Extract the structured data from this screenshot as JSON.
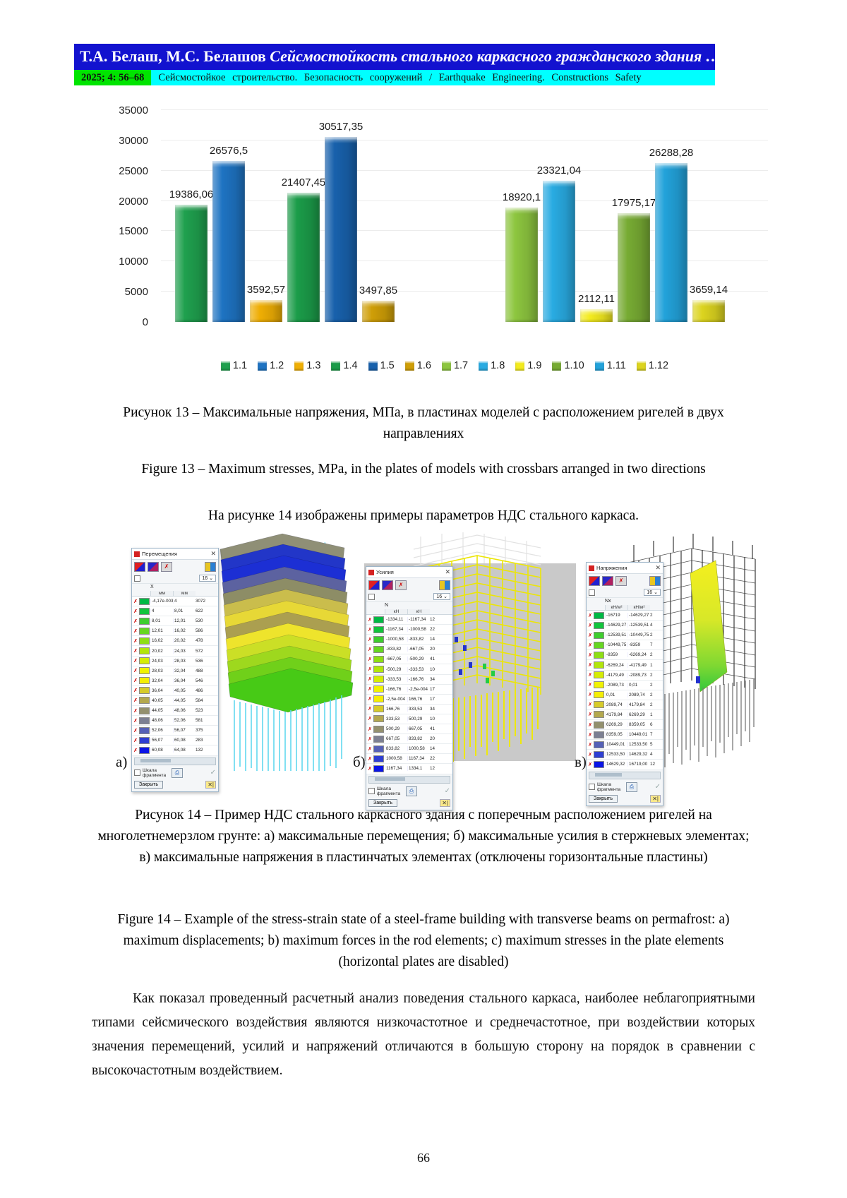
{
  "header": {
    "authors": "Т.А. Белаш, М.С. Белашов",
    "title_italic": "Сейсмостойкость стального каркасного гражданского здания …",
    "issue": "2025;   4:   56–68",
    "journal": "Сейсмостойкое строительство. Безопасность сооружений / Earthquake Engineering. Constructions Safety"
  },
  "chart_data": {
    "type": "bar",
    "title": "Максимальные напряжения, МПа, в пластинах моделей",
    "xlabel": "",
    "ylabel": "",
    "ylim": [
      0,
      35000
    ],
    "yticks": [
      0,
      5000,
      10000,
      15000,
      20000,
      25000,
      30000,
      35000
    ],
    "grid": true,
    "legend_position": "bottom",
    "series": [
      {
        "name": "1.1",
        "value": 19386.06,
        "label": "19386,06",
        "color": "#1fa04e"
      },
      {
        "name": "1.2",
        "value": 26576.5,
        "label": "26576,5",
        "color": "#1e73c2"
      },
      {
        "name": "1.3",
        "value": 3592.57,
        "label": "3592,57",
        "color": "#efae04"
      },
      {
        "name": "1.4",
        "value": 21407.45,
        "label": "21407,45",
        "color": "#1b9c49"
      },
      {
        "name": "1.5",
        "value": 30517.35,
        "label": "30517,35",
        "color": "#1861ac"
      },
      {
        "name": "1.6",
        "value": 3497.85,
        "label": "3497,85",
        "color": "#cf9e07"
      },
      {
        "name": "1.7",
        "value": 18920.1,
        "label": "18920,1",
        "color": "#8dc63f"
      },
      {
        "name": "1.8",
        "value": 23321.04,
        "label": "23321,04",
        "color": "#29abe2"
      },
      {
        "name": "1.9",
        "value": 2112.11,
        "label": "2112,11",
        "color": "#f3eb1e"
      },
      {
        "name": "1.10",
        "value": 17975.17,
        "label": "17975,17",
        "color": "#77ab33"
      },
      {
        "name": "1.11",
        "value": 26288.28,
        "label": "26288,28",
        "color": "#22a2da"
      },
      {
        "name": "1.12",
        "value": 3659.14,
        "label": "3659,14",
        "color": "#dcd41f"
      }
    ]
  },
  "captions": {
    "fig13_ru": "Рисунок 13 – Максимальные напряжения, МПа, в пластинах моделей с расположением ригелей в двух направлениях",
    "fig13_en": "Figure 13 – Maximum stresses, MPa, in the plates of models with crossbars arranged in two directions",
    "intro14": "На рисунке 14 изображены примеры параметров НДС стального каркаса.",
    "fig14_ru": "Рисунок 14 – Пример НДС стального каркасного здания с поперечным расположением ригелей на многолетнемерзлом грунте: а) максимальные перемещения; б) максимальные усилия в стержневых элементах; в) максимальные напряжения в пластинчатых элементах (отключены горизонтальные пластины)",
    "fig14_en": "Figure 14 – Example of the stress-strain state of a steel-frame building with transverse beams on permafrost: a) maximum displacements; b) maximum forces in the rod elements; c) maximum stresses in the plate elements (horizontal plates are disabled)"
  },
  "figures": {
    "a": {
      "label": "а)",
      "dialog_title": "Перемещения",
      "group_header": "X",
      "col1": "мм",
      "col2": "мм",
      "dropdown": "16",
      "fragment_scale": "Шкала фрагмента",
      "close": "Закрыть",
      "rows": [
        [
          "-4,17e-003",
          "4",
          "3072",
          "#00b944"
        ],
        [
          "4",
          "8,01",
          "622",
          "#12c43c"
        ],
        [
          "8,01",
          "12,01",
          "530",
          "#3ecd2e"
        ],
        [
          "12,01",
          "16,02",
          "586",
          "#66d621"
        ],
        [
          "16,02",
          "20,02",
          "478",
          "#8ede14"
        ],
        [
          "20,02",
          "24,03",
          "572",
          "#b2e50c"
        ],
        [
          "24,03",
          "28,03",
          "536",
          "#d5ec06"
        ],
        [
          "28,03",
          "32,04",
          "488",
          "#f0f202"
        ],
        [
          "32,04",
          "36,04",
          "546",
          "#f4ee04"
        ],
        [
          "36,04",
          "40,05",
          "486",
          "#d6cb2a"
        ],
        [
          "40,05",
          "44,05",
          "584",
          "#b3a84e"
        ],
        [
          "44,05",
          "48,06",
          "523",
          "#93906e"
        ],
        [
          "48,06",
          "52,06",
          "581",
          "#7c7f92"
        ],
        [
          "52,06",
          "56,07",
          "375",
          "#5560b6"
        ],
        [
          "56,07",
          "60,08",
          "283",
          "#2e3ed2"
        ],
        [
          "60,08",
          "64,08",
          "132",
          "#0a14e6"
        ]
      ]
    },
    "b": {
      "label": "б)",
      "dialog_title": "Усилия",
      "group_header": "N",
      "col1": "кН",
      "col2": "кН",
      "dropdown": "16",
      "fragment_scale": "Шкала фрагмента",
      "close": "Закрыть",
      "rows": [
        [
          "-1334,11",
          "-1167,34",
          "12",
          "#00b944"
        ],
        [
          "-1167,34",
          "-1000,58",
          "22",
          "#12c43c"
        ],
        [
          "-1000,58",
          "-833,82",
          "14",
          "#3ecd2e"
        ],
        [
          "-833,82",
          "-667,05",
          "20",
          "#66d621"
        ],
        [
          "-667,05",
          "-500,29",
          "41",
          "#8ede14"
        ],
        [
          "-500,29",
          "-333,53",
          "10",
          "#b2e50c"
        ],
        [
          "-333,53",
          "-166,76",
          "34",
          "#d5ec06"
        ],
        [
          "-166,76",
          "-2,5e-004",
          "17",
          "#f0f202"
        ],
        [
          "-2,5e-004",
          "166,76",
          "17",
          "#f4ee04"
        ],
        [
          "166,76",
          "333,53",
          "34",
          "#d6cb2a"
        ],
        [
          "333,53",
          "500,29",
          "10",
          "#b3a84e"
        ],
        [
          "500,29",
          "667,05",
          "41",
          "#93906e"
        ],
        [
          "667,05",
          "833,82",
          "20",
          "#7c7f92"
        ],
        [
          "833,82",
          "1000,58",
          "14",
          "#5560b6"
        ],
        [
          "1000,58",
          "1167,34",
          "22",
          "#2e3ed2"
        ],
        [
          "1167,34",
          "1334,1",
          "12",
          "#0a14e6"
        ]
      ]
    },
    "c": {
      "label": "в)",
      "dialog_title": "Напряжения",
      "group_header": "Nx",
      "col1": "кН/м²",
      "col2": "кН/м²",
      "dropdown": "16",
      "fragment_scale": "Шкала фрагмента",
      "close": "Закрыть",
      "rows": [
        [
          "-16719",
          "-14629,27",
          "2",
          "#00b944"
        ],
        [
          "-14629,27",
          "-12539,51",
          "4",
          "#12c43c"
        ],
        [
          "-12539,51",
          "-10449,75",
          "2",
          "#3ecd2e"
        ],
        [
          "-10449,75",
          "-8359",
          "7",
          "#66d621"
        ],
        [
          "-8359",
          "-6269,24",
          "2",
          "#8ede14"
        ],
        [
          "-6269,24",
          "-4179,49",
          "1",
          "#b2e50c"
        ],
        [
          "-4179,49",
          "-2089,73",
          "2",
          "#d5ec06"
        ],
        [
          "-2089,73",
          "0,01",
          "2",
          "#f0f202"
        ],
        [
          "0,01",
          "2089,74",
          "2",
          "#f4ee04"
        ],
        [
          "2089,74",
          "4179,84",
          "2",
          "#d6cb2a"
        ],
        [
          "4179,84",
          "6269,29",
          "1",
          "#b3a84e"
        ],
        [
          "6269,29",
          "8359,05",
          "6",
          "#93906e"
        ],
        [
          "8359,05",
          "10449,01",
          "7",
          "#7c7f92"
        ],
        [
          "10449,01",
          "12533,50",
          "5",
          "#5560b6"
        ],
        [
          "12533,50",
          "14629,32",
          "4",
          "#2e3ed2"
        ],
        [
          "14629,32",
          "16719,00",
          "12",
          "#0a14e6"
        ]
      ]
    }
  },
  "body_text": "Как показал проведенный расчетный анализ поведения стального каркаса, наиболее неблагоприятными типами сейсмического воздействия являются низкочастотное и среднечастотное, при воздействии которых значения перемещений, усилий и напряжений отличаются в большую сторону на порядок в сравнении с высокочастотным воздействием.",
  "page_number": "66"
}
